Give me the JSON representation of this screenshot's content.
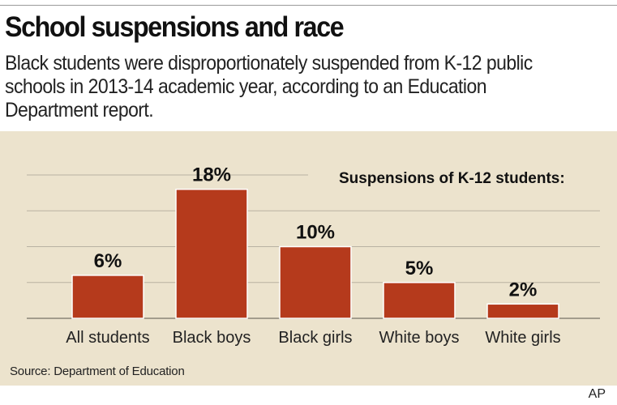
{
  "header": {
    "title": "School suspensions and race",
    "subtitle": "Black students were disproportionately suspended from K-12 public schools in 2013-14 academic year, according to an Education Department report."
  },
  "chart_data": {
    "type": "bar",
    "title": "Suspensions of K-12 students:",
    "categories": [
      "All students",
      "Black boys",
      "Black girls",
      "White boys",
      "White girls"
    ],
    "values": [
      6,
      18,
      10,
      5,
      2
    ],
    "value_labels": [
      "6%",
      "18%",
      "10%",
      "5%",
      "2%"
    ],
    "ylim": [
      0,
      20
    ],
    "grid": true,
    "bar_color": "#b53a1c",
    "background_color": "#ece3cd"
  },
  "footer": {
    "source": "Source: Department of Education",
    "credit": "AP"
  }
}
